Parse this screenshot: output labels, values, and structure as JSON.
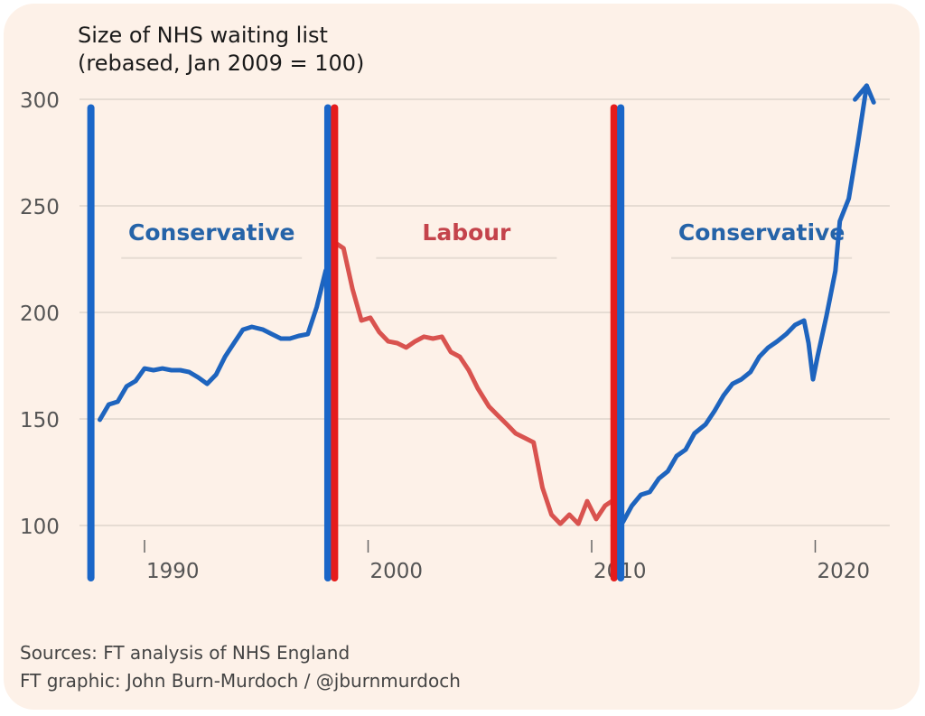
{
  "chart_data": {
    "type": "line",
    "title": "Size of NHS waiting list",
    "subtitle": "(rebased, Jan 2009 = 100)",
    "ylim": [
      90,
      310
    ],
    "xlim": [
      1986.5,
      2023.3
    ],
    "yticks": [
      100,
      150,
      200,
      250,
      300
    ],
    "xticks": [
      1990,
      2000,
      2010,
      2020
    ],
    "grid": true,
    "colors": {
      "conservative": "#1e64be",
      "labour": "#d9534f",
      "conservative_divider": "#1a66c8",
      "labour_divider": "#e51c1c",
      "background": "#fdf1e8"
    },
    "dividers": [
      {
        "x": 1987.6,
        "party": "conservative"
      },
      {
        "x": 1998.2,
        "party": "conservative"
      },
      {
        "x": 1998.5,
        "party": "labour"
      },
      {
        "x": 2011.0,
        "party": "labour"
      },
      {
        "x": 2011.3,
        "party": "conservative"
      }
    ],
    "annotations": [
      {
        "text": "Conservative",
        "party": "conservative",
        "x": 1993.0,
        "y": 234
      },
      {
        "text": "Labour",
        "party": "labour",
        "x": 2004.4,
        "y": 234
      },
      {
        "text": "Conservative",
        "party": "conservative",
        "x": 2017.6,
        "y": 234
      }
    ],
    "series": [
      {
        "party": "conservative",
        "arrow": false,
        "x": [
          1988.0,
          1988.4,
          1988.8,
          1989.2,
          1989.6,
          1990.0,
          1990.4,
          1990.8,
          1991.2,
          1991.6,
          1992.0,
          1992.4,
          1992.8,
          1993.2,
          1993.6,
          1994.0,
          1994.4,
          1994.8,
          1995.3,
          1995.7,
          1996.1,
          1996.5,
          1996.9,
          1997.3,
          1997.7,
          1998.1,
          1998.3
        ],
        "y": [
          149.6,
          156.8,
          158.1,
          165.3,
          167.8,
          173.7,
          172.9,
          173.7,
          172.9,
          172.9,
          172.0,
          169.5,
          166.5,
          170.8,
          179.2,
          185.6,
          191.9,
          193.2,
          191.9,
          189.8,
          187.7,
          187.7,
          189.0,
          189.8,
          202.5,
          219.5,
          223.7
        ]
      },
      {
        "party": "labour",
        "arrow": false,
        "x": [
          1998.6,
          1998.9,
          1999.3,
          1999.7,
          2000.1,
          2000.5,
          2000.9,
          2001.3,
          2001.7,
          2002.1,
          2002.5,
          2002.9,
          2003.3,
          2003.7,
          2004.1,
          2004.5,
          2004.9,
          2005.4,
          2005.8,
          2006.2,
          2006.6,
          2007.0,
          2007.4,
          2007.8,
          2008.2,
          2008.6,
          2009.0,
          2009.4,
          2009.8,
          2010.2,
          2010.6,
          2010.9
        ],
        "y": [
          232.2,
          230.1,
          211.0,
          196.2,
          197.5,
          190.7,
          186.4,
          185.6,
          183.5,
          186.4,
          188.6,
          187.7,
          188.6,
          181.4,
          179.2,
          172.9,
          164.4,
          155.9,
          151.7,
          147.5,
          143.2,
          141.1,
          139.0,
          117.8,
          105.1,
          100.8,
          105.1,
          100.8,
          111.4,
          103.0,
          109.3,
          111.4
        ]
      },
      {
        "party": "conservative",
        "arrow": true,
        "x": [
          2011.4,
          2011.8,
          2012.2,
          2012.6,
          2013.0,
          2013.4,
          2013.8,
          2014.2,
          2014.6,
          2015.1,
          2015.5,
          2015.9,
          2016.3,
          2016.7,
          2017.1,
          2017.5,
          2017.9,
          2018.3,
          2018.7,
          2019.1,
          2019.5,
          2019.7,
          2019.9,
          2020.1,
          2020.5,
          2020.9,
          2021.1,
          2021.5,
          2021.9,
          2022.3
        ],
        "y": [
          101.7,
          109.3,
          114.4,
          115.7,
          122.0,
          125.4,
          132.6,
          135.6,
          143.2,
          147.5,
          153.8,
          161.0,
          166.5,
          168.6,
          172.0,
          179.2,
          183.5,
          186.4,
          189.8,
          194.1,
          196.2,
          185.6,
          168.6,
          179.2,
          198.3,
          219.5,
          242.8,
          253.4,
          278.8,
          306.4
        ]
      }
    ]
  },
  "footer": {
    "sources": "Sources: FT analysis of NHS England",
    "credit": "FT graphic: John Burn-Murdoch / @jburnmurdoch"
  }
}
